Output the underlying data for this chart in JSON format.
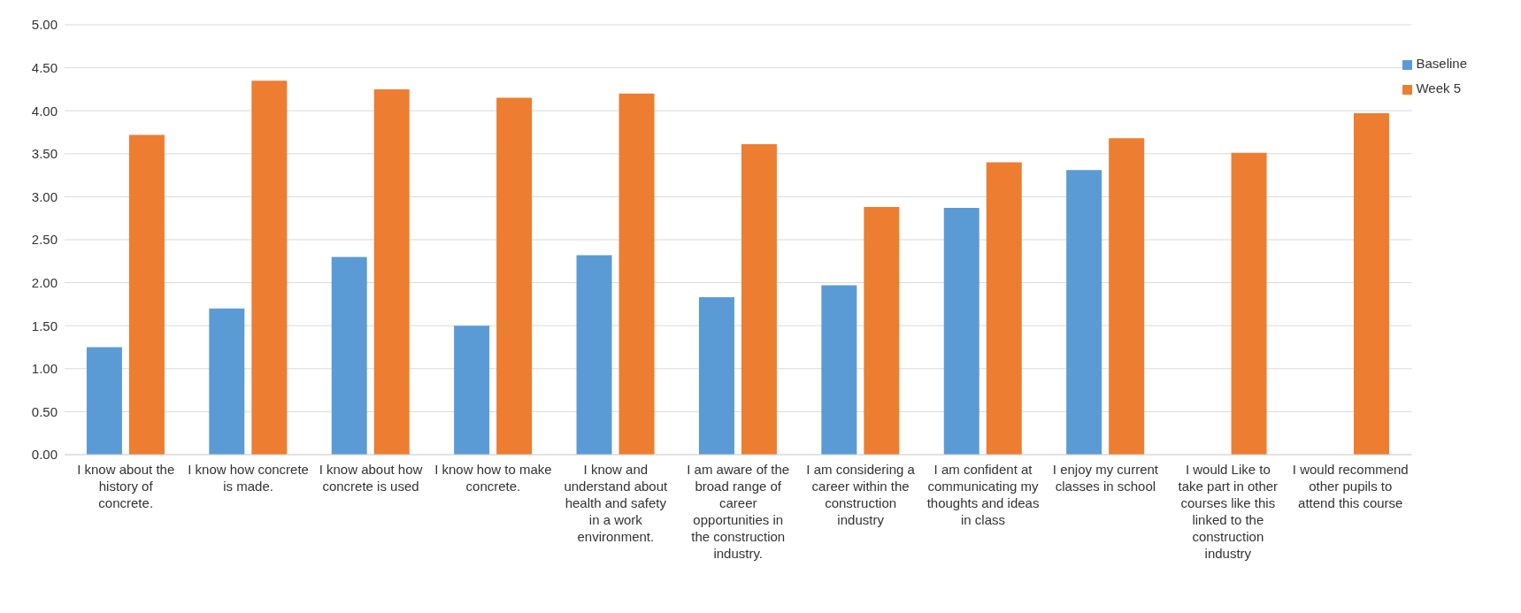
{
  "chart_data": {
    "type": "bar",
    "categories": [
      "I know about the history of concrete.",
      "I know how concrete is made.",
      "I know about how concrete is used",
      "I know how to make concrete.",
      "I know and understand about health and safety in a work environment.",
      "I am aware of the broad range of career opportunities in the construction industry.",
      "I am considering a career within the construction industry",
      "I am confident at communicating my thoughts and ideas in class",
      "I enjoy my current classes in school",
      "I would Like to take part in other courses like this linked to the construction industry",
      "I would recommend other pupils to attend this course"
    ],
    "series": [
      {
        "name": "Baseline",
        "color": "#5b9bd5",
        "values": [
          1.25,
          1.7,
          2.3,
          1.5,
          2.32,
          1.83,
          1.97,
          2.87,
          3.31,
          null,
          null
        ]
      },
      {
        "name": "Week 5",
        "color": "#ed7d31",
        "values": [
          3.72,
          4.35,
          4.25,
          4.15,
          4.2,
          3.61,
          2.88,
          3.4,
          3.68,
          3.51,
          3.97
        ]
      }
    ],
    "ylim": [
      0,
      5
    ],
    "yticks": [
      {
        "value": 0,
        "label": "0.00"
      },
      {
        "value": 0.5,
        "label": "0.50"
      },
      {
        "value": 1,
        "label": "1.00"
      },
      {
        "value": 1.5,
        "label": "1.50"
      },
      {
        "value": 2,
        "label": "2.00"
      },
      {
        "value": 2.5,
        "label": "2.50"
      },
      {
        "value": 3,
        "label": "3.00"
      },
      {
        "value": 3.5,
        "label": "3.50"
      },
      {
        "value": 4,
        "label": "4.00"
      },
      {
        "value": 4.5,
        "label": "4.50"
      },
      {
        "value": 5,
        "label": "5.00"
      }
    ],
    "grid": "y",
    "legend": "top right"
  }
}
